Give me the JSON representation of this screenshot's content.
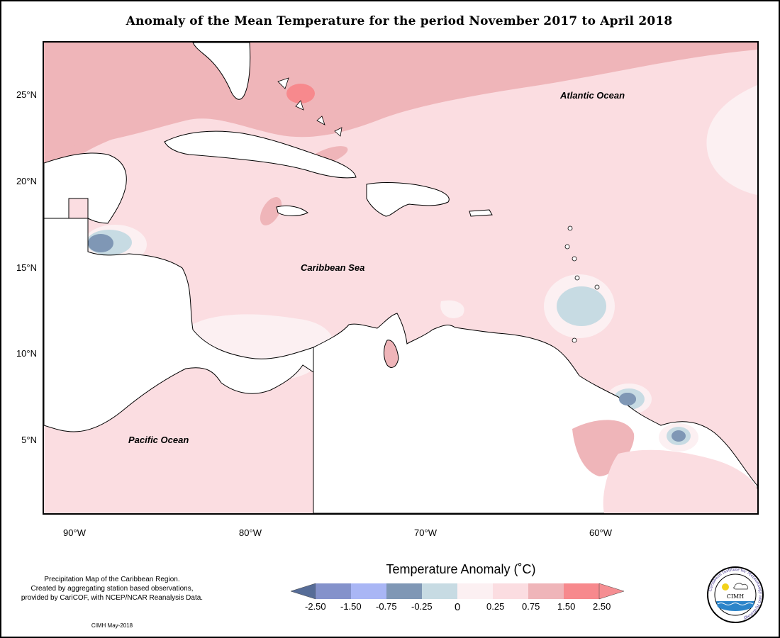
{
  "title": "Anomaly of the Mean Temperature for the period November 2017 to April 2018",
  "lat_labels": [
    "25°N",
    "20°N",
    "15°N",
    "10°N",
    "5°N"
  ],
  "lon_labels": [
    "90°W",
    "80°W",
    "70°W",
    "60°W"
  ],
  "region_labels": {
    "atlantic": "Atlantic Ocean",
    "caribbean": "Caribbean Sea",
    "pacific": "Pacific Ocean"
  },
  "legend": {
    "title": "Temperature Anomaly (˚C)",
    "ticks": [
      "-2.50",
      "-1.50",
      "-0.75",
      "-0.25",
      "0",
      "0.25",
      "0.75",
      "1.50",
      "2.50"
    ],
    "colors": [
      "#566c97",
      "#8492cb",
      "#a9b6f5",
      "#7f97b5",
      "#c7dbe3",
      "#fcf0f2",
      "#fbdde1",
      "#efb5b9",
      "#f7898d",
      "#f58e92"
    ]
  },
  "note": {
    "lines": [
      "Precipitation Map of the Caribbean Region.",
      "Created by aggregating station based observations,",
      "provided by CariCOF, with NCEP/NCAR Reanalysis Data."
    ],
    "date": "CIMH May-2018"
  },
  "logo": {
    "center_text": "CIMH",
    "ring_text": "Caribbean Institute for Meteorology and Hydrology"
  }
}
